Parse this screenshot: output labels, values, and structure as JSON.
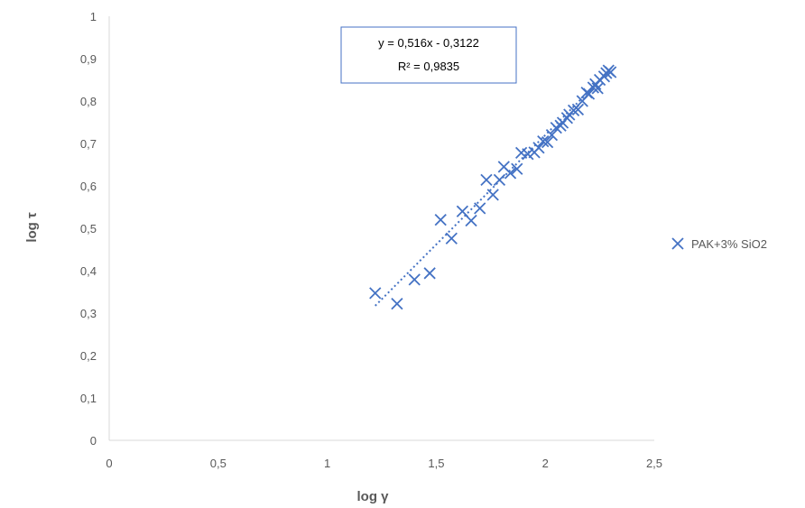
{
  "chart_data": {
    "type": "scatter",
    "xlabel": "log γ",
    "ylabel": "log τ",
    "xlim": [
      0,
      2.5
    ],
    "ylim": [
      0,
      1
    ],
    "x_ticks": [
      "0",
      "0,5",
      "1",
      "1,5",
      "2",
      "2,5"
    ],
    "y_ticks": [
      "0",
      "0,1",
      "0,2",
      "0,3",
      "0,4",
      "0,5",
      "0,6",
      "0,7",
      "0,8",
      "0,9",
      "1"
    ],
    "grid": false,
    "legend_position": "right",
    "series": [
      {
        "name": "PAK+3% SiO2",
        "marker": "x",
        "color": "#4472C4",
        "points": [
          [
            1.22,
            0.347
          ],
          [
            1.32,
            0.322
          ],
          [
            1.4,
            0.379
          ],
          [
            1.47,
            0.394
          ],
          [
            1.52,
            0.52
          ],
          [
            1.57,
            0.476
          ],
          [
            1.62,
            0.54
          ],
          [
            1.66,
            0.518
          ],
          [
            1.7,
            0.547
          ],
          [
            1.73,
            0.614
          ],
          [
            1.76,
            0.579
          ],
          [
            1.79,
            0.614
          ],
          [
            1.81,
            0.645
          ],
          [
            1.84,
            0.63
          ],
          [
            1.87,
            0.64
          ],
          [
            1.89,
            0.678
          ],
          [
            1.92,
            0.675
          ],
          [
            1.95,
            0.679
          ],
          [
            1.97,
            0.69
          ],
          [
            1.99,
            0.705
          ],
          [
            2.01,
            0.703
          ],
          [
            2.03,
            0.72
          ],
          [
            2.05,
            0.737
          ],
          [
            2.07,
            0.742
          ],
          [
            2.08,
            0.749
          ],
          [
            2.1,
            0.76
          ],
          [
            2.11,
            0.768
          ],
          [
            2.13,
            0.778
          ],
          [
            2.15,
            0.78
          ],
          [
            2.17,
            0.8
          ],
          [
            2.19,
            0.82
          ],
          [
            2.2,
            0.817
          ],
          [
            2.22,
            0.832
          ],
          [
            2.23,
            0.84
          ],
          [
            2.24,
            0.83
          ],
          [
            2.25,
            0.85
          ],
          [
            2.27,
            0.858
          ],
          [
            2.28,
            0.866
          ],
          [
            2.29,
            0.872
          ],
          [
            2.3,
            0.868
          ]
        ]
      }
    ],
    "trendline": {
      "type": "linear",
      "style": "dotted",
      "slope": 0.516,
      "intercept": -0.3122,
      "x_range": [
        1.22,
        2.3
      ],
      "equation_label": "y = 0,516x - 0,3122",
      "r2_label": "R² = 0,9835"
    }
  },
  "colors": {
    "series": "#4472C4",
    "axis": "#D9D9D9",
    "text": "#595959"
  }
}
